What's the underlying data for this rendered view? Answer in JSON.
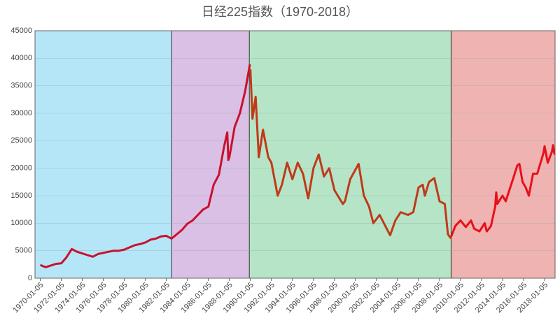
{
  "chart_data": {
    "type": "line",
    "title": "日经225指数（1970-2018）",
    "xlim": [
      1969.5,
      2019.0
    ],
    "xticks": [
      {
        "value": 1970,
        "label": "1970-01-05"
      },
      {
        "value": 1972,
        "label": "1972-01-05"
      },
      {
        "value": 1974,
        "label": "1974-01-05"
      },
      {
        "value": 1976,
        "label": "1976-01-05"
      },
      {
        "value": 1978,
        "label": "1978-01-05"
      },
      {
        "value": 1980,
        "label": "1980-01-05"
      },
      {
        "value": 1982,
        "label": "1982-01-05"
      },
      {
        "value": 1984,
        "label": "1984-01-05"
      },
      {
        "value": 1986,
        "label": "1986-01-05"
      },
      {
        "value": 1988,
        "label": "1988-01-05"
      },
      {
        "value": 1990,
        "label": "1990-01-05"
      },
      {
        "value": 1992,
        "label": "1992-01-05"
      },
      {
        "value": 1994,
        "label": "1994-01-05"
      },
      {
        "value": 1996,
        "label": "1996-01-05"
      },
      {
        "value": 1998,
        "label": "1998-01-05"
      },
      {
        "value": 2000,
        "label": "2000-01-05"
      },
      {
        "value": 2002,
        "label": "2002-01-05"
      },
      {
        "value": 2004,
        "label": "2004-01-05"
      },
      {
        "value": 2006,
        "label": "2006-01-05"
      },
      {
        "value": 2008,
        "label": "2008-01-05"
      },
      {
        "value": 2010,
        "label": "2010-01-05"
      },
      {
        "value": 2012,
        "label": "2012-01-05"
      },
      {
        "value": 2014,
        "label": "2014-01-05"
      },
      {
        "value": 2016,
        "label": "2016-01-05"
      },
      {
        "value": 2018,
        "label": "2018-01-05"
      }
    ],
    "ylim": [
      0,
      45000
    ],
    "yticks": [
      0,
      5000,
      10000,
      15000,
      20000,
      25000,
      30000,
      35000,
      40000,
      45000
    ],
    "grid": true,
    "bands": [
      {
        "xlim": [
          1969.5,
          1982.5
        ],
        "color": "#b5e6f7"
      },
      {
        "xlim": [
          1982.5,
          1989.9
        ],
        "color": "#d9c0e4"
      },
      {
        "xlim": [
          1989.9,
          2009.1
        ],
        "color": "#b5e5c6"
      },
      {
        "xlim": [
          2009.1,
          2019.0
        ],
        "color": "#efb3b1"
      }
    ],
    "series": [
      {
        "color": "#c8102e",
        "x": [
          1970.0,
          1970.5,
          1971.0,
          1971.5,
          1972.0,
          1972.5,
          1973.0,
          1973.5,
          1974.0,
          1974.5,
          1975.0,
          1975.5,
          1976.0,
          1976.5,
          1977.0,
          1977.5,
          1978.0,
          1978.5,
          1979.0,
          1979.5,
          1980.0,
          1980.5,
          1981.0,
          1981.5,
          1982.0,
          1982.5,
          1983.0,
          1983.5,
          1984.0,
          1984.5,
          1985.0,
          1985.5,
          1986.0,
          1986.5,
          1987.0,
          1987.5,
          1987.8,
          1987.9,
          1988.0,
          1988.5,
          1989.0,
          1989.5,
          1989.95
        ],
        "values": [
          2400,
          2000,
          2300,
          2600,
          2700,
          3800,
          5300,
          4800,
          4500,
          4200,
          3900,
          4400,
          4600,
          4800,
          5000,
          5000,
          5200,
          5600,
          6000,
          6200,
          6500,
          7000,
          7200,
          7600,
          7700,
          7200,
          8000,
          8800,
          9900,
          10500,
          11500,
          12500,
          13000,
          17000,
          18800,
          24000,
          26500,
          21500,
          22000,
          27500,
          30000,
          34000,
          38900
        ]
      },
      {
        "color": "#c0391b",
        "x": [
          1990.0,
          1990.2,
          1990.5,
          1990.8,
          1991.2,
          1991.7,
          1992.0,
          1992.6,
          1993.0,
          1993.5,
          1994.0,
          1994.5,
          1995.0,
          1995.5,
          1996.0,
          1996.5,
          1997.0,
          1997.5,
          1998.0,
          1998.8,
          1999.0,
          1999.5,
          2000.3,
          2000.8,
          2001.3,
          2001.7,
          2002.3,
          2003.3,
          2003.8,
          2004.3,
          2005.0,
          2005.5,
          2006.0,
          2006.4,
          2006.6,
          2007.0,
          2007.5,
          2008.0,
          2008.5,
          2008.8,
          2009.1
        ],
        "values": [
          38000,
          29000,
          33000,
          22000,
          27000,
          22000,
          21000,
          15000,
          17000,
          21000,
          18000,
          21000,
          19000,
          14500,
          20000,
          22500,
          18500,
          20000,
          16000,
          13500,
          14000,
          18000,
          20800,
          15000,
          13000,
          10000,
          11500,
          7800,
          10500,
          12000,
          11500,
          12000,
          16500,
          17000,
          15000,
          17500,
          18200,
          14000,
          13500,
          8000,
          7200
        ]
      },
      {
        "color": "#e8101a",
        "x": [
          2009.1,
          2009.5,
          2010.0,
          2010.5,
          2011.0,
          2011.3,
          2011.8,
          2012.3,
          2012.5,
          2012.9,
          2013.3,
          2013.4,
          2013.5,
          2014.0,
          2014.3,
          2014.9,
          2015.4,
          2015.6,
          2015.9,
          2016.2,
          2016.5,
          2016.9,
          2017.3,
          2017.9,
          2018.0,
          2018.3,
          2018.7,
          2018.8,
          2018.95
        ],
        "values": [
          7500,
          9500,
          10500,
          9300,
          10500,
          9000,
          8500,
          10000,
          8500,
          9500,
          13000,
          15600,
          13500,
          15000,
          14000,
          17500,
          20500,
          20800,
          17500,
          16500,
          15000,
          19000,
          19000,
          22800,
          24000,
          21000,
          23000,
          24200,
          22500
        ]
      }
    ]
  }
}
